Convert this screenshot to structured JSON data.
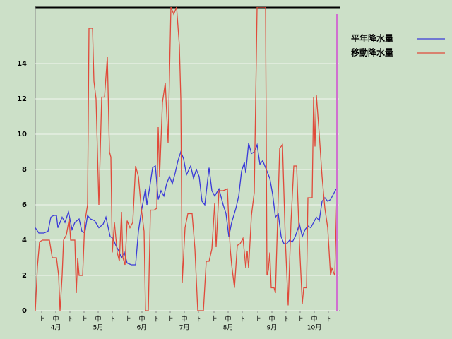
{
  "chart_data": {
    "type": "line",
    "series": [
      {
        "name": "平年降水量",
        "color": "#3a3ad8",
        "x": [
          0,
          2.5,
          6,
          9,
          11,
          13,
          15,
          16,
          19,
          21,
          23.5,
          26,
          28,
          31,
          33,
          35,
          37,
          39,
          42,
          45,
          48,
          50,
          53,
          55,
          57,
          59,
          61,
          63,
          65,
          68,
          71,
          73,
          75,
          78,
          79,
          81,
          83,
          85,
          87,
          89,
          91,
          93,
          95,
          97,
          99,
          101,
          103,
          105,
          107,
          110,
          112,
          114,
          116,
          118,
          120,
          123,
          125,
          127,
          130,
          133,
          135,
          137,
          139,
          142,
          144,
          146,
          148,
          149,
          151,
          153,
          155,
          157,
          159,
          161,
          164,
          166,
          168,
          170,
          172,
          174,
          176,
          178,
          180,
          182,
          184,
          187,
          189,
          191,
          193,
          195,
          197,
          199,
          201,
          203,
          205,
          207,
          209,
          211,
          213
        ],
        "values": [
          4.7,
          4.4,
          4.4,
          4.5,
          5.3,
          5.4,
          5.4,
          4.7,
          5.3,
          5.0,
          5.6,
          4.6,
          5.0,
          5.2,
          4.5,
          4.4,
          5.4,
          5.2,
          5.1,
          4.7,
          4.9,
          5.3,
          4.2,
          4.1,
          3.7,
          3.4,
          3.0,
          3.3,
          2.7,
          2.6,
          2.6,
          4.5,
          5.6,
          6.9,
          6.0,
          7.0,
          8.1,
          8.2,
          6.3,
          6.8,
          6.5,
          7.2,
          7.6,
          7.2,
          7.8,
          8.5,
          9.0,
          8.6,
          7.7,
          8.2,
          7.5,
          8.0,
          7.6,
          6.2,
          6.0,
          8.1,
          6.8,
          6.5,
          6.9,
          6.0,
          5.5,
          4.2,
          5.0,
          5.8,
          6.5,
          7.9,
          8.4,
          7.8,
          9.5,
          8.9,
          9.0,
          9.4,
          8.3,
          8.5,
          7.9,
          7.5,
          6.6,
          5.3,
          5.5,
          4.2,
          3.8,
          3.8,
          4.0,
          3.9,
          4.2,
          4.9,
          4.2,
          4.6,
          4.8,
          4.7,
          5.0,
          5.3,
          5.1,
          6.2,
          6.4,
          6.2,
          6.3,
          6.6,
          6.9
        ]
      },
      {
        "name": "移動降水量",
        "color": "#e04a3a",
        "x": [
          0,
          1.5,
          3,
          5,
          10,
          12,
          15,
          16.5,
          17.5,
          19,
          20,
          22,
          24,
          25,
          28,
          29,
          30,
          31,
          33.5,
          35,
          37,
          38,
          40.5,
          41.5,
          43,
          45,
          47,
          49,
          51,
          52.5,
          53.5,
          54.5,
          56,
          58,
          59.5,
          61,
          62,
          63.5,
          65,
          67,
          69,
          71,
          73,
          75,
          77,
          78,
          80,
          81.5,
          84,
          86,
          87,
          88,
          90,
          92,
          94,
          96,
          98,
          100,
          102,
          103,
          104,
          106,
          108,
          111,
          113,
          115,
          119,
          121,
          123,
          125,
          127,
          128,
          130,
          133,
          136,
          137,
          138,
          139,
          141,
          143,
          145,
          147,
          148,
          149,
          150,
          151,
          153,
          155,
          157,
          163,
          164,
          165,
          166,
          167,
          169,
          170,
          173,
          175,
          177,
          179,
          181,
          183,
          185,
          187,
          189,
          190,
          192,
          193,
          196,
          197,
          198,
          199,
          201,
          203,
          205,
          207,
          209,
          210,
          212,
          214
        ],
        "values": [
          0,
          2.5,
          3.9,
          4.0,
          4.0,
          3.0,
          3.0,
          2.0,
          0,
          2.0,
          4.0,
          4.3,
          5.2,
          4.0,
          4.0,
          1.0,
          3.0,
          2.0,
          2.0,
          5.0,
          6.0,
          16.0,
          16.0,
          13.0,
          12.0,
          6.0,
          12.1,
          12.1,
          14.4,
          9.0,
          8.7,
          3.3,
          5.0,
          3.3,
          2.8,
          5.6,
          3.0,
          2.6,
          5.1,
          4.7,
          5.0,
          8.2,
          7.6,
          5.8,
          4.5,
          0,
          0,
          5.7,
          5.7,
          5.8,
          10.4,
          7.6,
          11.8,
          12.9,
          9.5,
          17.2,
          16.8,
          17.2,
          15.0,
          12.0,
          1.6,
          4.7,
          5.5,
          5.5,
          3.5,
          0,
          0,
          2.8,
          2.8,
          3.5,
          6.1,
          3.6,
          6.8,
          6.8,
          6.9,
          5.0,
          3.5,
          2.6,
          1.3,
          3.7,
          3.8,
          4.1,
          3.3,
          2.4,
          3.4,
          2.4,
          5.4,
          6.7,
          17.2,
          17.2,
          2.0,
          2.3,
          3.3,
          1.3,
          1.3,
          1.0,
          9.2,
          9.4,
          4.0,
          0.3,
          5.0,
          8.2,
          8.2,
          3.8,
          0.4,
          1.3,
          1.3,
          6.4,
          6.4,
          12.1,
          9.3,
          12.2,
          10.0,
          7.6,
          5.8,
          4.7,
          2.0,
          2.4,
          2.0,
          8.1
        ]
      }
    ],
    "xlim": [
      0,
      215
    ],
    "xticks": [
      {
        "value": 4.5,
        "label": "上"
      },
      {
        "value": 14.5,
        "label": "中"
      },
      {
        "value": 24.5,
        "label": "下"
      },
      {
        "value": 34.5,
        "label": "上"
      },
      {
        "value": 44.5,
        "label": "中"
      },
      {
        "value": 54.5,
        "label": "下"
      },
      {
        "value": 65.5,
        "label": "上"
      },
      {
        "value": 75.5,
        "label": "中"
      },
      {
        "value": 85.5,
        "label": "下"
      },
      {
        "value": 95.5,
        "label": "上"
      },
      {
        "value": 105.5,
        "label": "中"
      },
      {
        "value": 115.5,
        "label": "下"
      },
      {
        "value": 126.5,
        "label": "上"
      },
      {
        "value": 136.5,
        "label": "中"
      },
      {
        "value": 146.5,
        "label": "下"
      },
      {
        "value": 157.5,
        "label": "上"
      },
      {
        "value": 167.5,
        "label": "中"
      },
      {
        "value": 177.5,
        "label": "下"
      },
      {
        "value": 187.5,
        "label": "上"
      },
      {
        "value": 197.5,
        "label": "中"
      },
      {
        "value": 207.5,
        "label": "下"
      }
    ],
    "month_labels": [
      {
        "value": 14.5,
        "label": "4月"
      },
      {
        "value": 44.5,
        "label": "5月"
      },
      {
        "value": 75.5,
        "label": "6月"
      },
      {
        "value": 105.5,
        "label": "7月"
      },
      {
        "value": 136.5,
        "label": "8月"
      },
      {
        "value": 167.5,
        "label": "9月"
      },
      {
        "value": 197.5,
        "label": "10月"
      }
    ],
    "ylim": [
      0,
      17.2
    ],
    "yticks": [
      0,
      2,
      4,
      6,
      8,
      10,
      12,
      14
    ],
    "grid": true,
    "marker_x": 213.5,
    "marker_color": "#d070d0"
  }
}
